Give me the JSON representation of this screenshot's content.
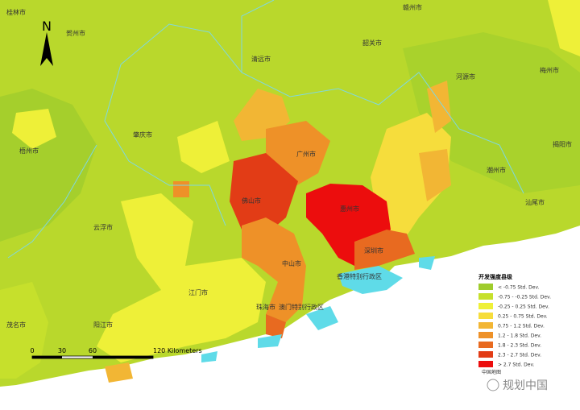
{
  "map": {
    "north": "N",
    "cities": [
      "桂林市",
      "贺州市",
      "赣州市",
      "韶关市",
      "清远市",
      "河源市",
      "梅州市",
      "肇庆市",
      "广州市",
      "揭阳市",
      "梧州市",
      "惠州市",
      "潮州市",
      "汕尾市",
      "佛山市",
      "云浮市",
      "深圳市",
      "中山市",
      "江门市",
      "香港特别行政区",
      "珠海市",
      "澳门特别行政区",
      "茂名市",
      "阳江市"
    ],
    "scale_bar": {
      "labels": [
        "0",
        "30",
        "60",
        "120 Kilometers"
      ]
    },
    "legend": {
      "title": "开发强度县级",
      "items": [
        {
          "label": "< -0.75 Std. Dev.",
          "color": "#9fcc2c"
        },
        {
          "label": "-0.75 - -0.25 Std. Dev.",
          "color": "#c6e02c"
        },
        {
          "label": "-0.25 - 0.25 Std. Dev.",
          "color": "#eef038"
        },
        {
          "label": "0.25 - 0.75 Std. Dev.",
          "color": "#f6dd3c"
        },
        {
          "label": "0.75 - 1.2 Std. Dev.",
          "color": "#f2b634"
        },
        {
          "label": "1.2 - 1.8 Std. Dev.",
          "color": "#ee9128"
        },
        {
          "label": "1.8 - 2.3 Std. Dev.",
          "color": "#e86a20"
        },
        {
          "label": "2.3 - 2.7 Std. Dev.",
          "color": "#e23c16"
        },
        {
          "label": "> 2.7 Std. Dev.",
          "color": "#ec0d0d"
        }
      ],
      "note": "中国地图"
    },
    "watermark": "规划中国"
  }
}
